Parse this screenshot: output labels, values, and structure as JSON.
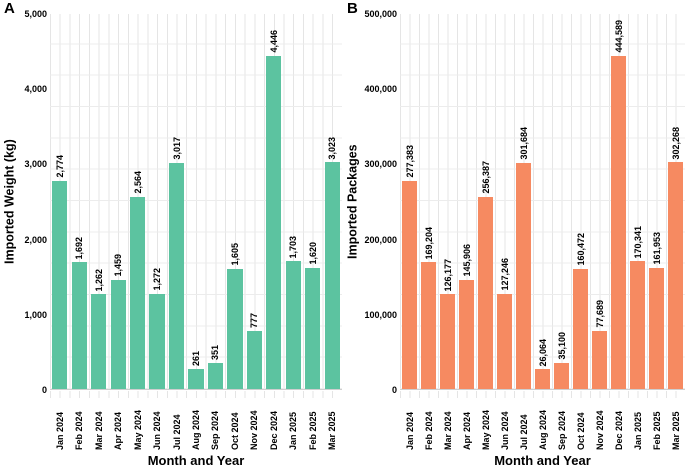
{
  "figure": {
    "description": "Two-panel monthly bar chart figure"
  },
  "chart_data": [
    {
      "type": "bar",
      "panel_label": "A",
      "xlabel": "Month and Year",
      "ylabel": "Imported Weight (kg)",
      "categories": [
        "Jan 2024",
        "Feb 2024",
        "Mar 2024",
        "Apr 2024",
        "May 2024",
        "Jun 2024",
        "Jul 2024",
        "Aug 2024",
        "Sep 2024",
        "Oct 2024",
        "Nov 2024",
        "Dec 2024",
        "Jan 2025",
        "Feb 2025",
        "Mar 2025"
      ],
      "values": [
        2774,
        1692,
        1262,
        1459,
        2564,
        1272,
        3017,
        261,
        351,
        1605,
        777,
        4446,
        1703,
        1620,
        3023
      ],
      "value_labels": [
        "2,774",
        "1,692",
        "1,262",
        "1,459",
        "2,564",
        "1,272",
        "3,017",
        "261",
        "351",
        "1,605",
        "777",
        "4,446",
        "1,703",
        "1,620",
        "3,023"
      ],
      "ylim": [
        0,
        5000
      ],
      "yticks": [
        0,
        1000,
        2000,
        3000,
        4000,
        5000
      ],
      "ytick_labels": [
        "0",
        "1,000",
        "2,000",
        "3,000",
        "4,000",
        "5,000"
      ],
      "bar_color": "#5CC3A0",
      "grid": true,
      "legend": "none"
    },
    {
      "type": "bar",
      "panel_label": "B",
      "xlabel": "Month and Year",
      "ylabel": "Imported Packages",
      "categories": [
        "Jan 2024",
        "Feb 2024",
        "Mar 2024",
        "Apr 2024",
        "May 2024",
        "Jun 2024",
        "Jul 2024",
        "Aug 2024",
        "Sep 2024",
        "Oct 2024",
        "Nov 2024",
        "Dec 2024",
        "Jan 2025",
        "Feb 2025",
        "Mar 2025"
      ],
      "values": [
        277383,
        169204,
        126177,
        145906,
        256387,
        127246,
        301684,
        26064,
        35100,
        160472,
        77689,
        444589,
        170341,
        161953,
        302268
      ],
      "value_labels": [
        "277,383",
        "169,204",
        "126,177",
        "145,906",
        "256,387",
        "127,246",
        "301,684",
        "26,064",
        "35,100",
        "160,472",
        "77,689",
        "444,589",
        "170,341",
        "161,953",
        "302,268"
      ],
      "ylim": [
        0,
        500000
      ],
      "yticks": [
        0,
        100000,
        200000,
        300000,
        400000,
        500000
      ],
      "ytick_labels": [
        "0",
        "100,000",
        "200,000",
        "300,000",
        "400,000",
        "500,000"
      ],
      "bar_color": "#F68A61",
      "grid": true,
      "legend": "none"
    }
  ]
}
